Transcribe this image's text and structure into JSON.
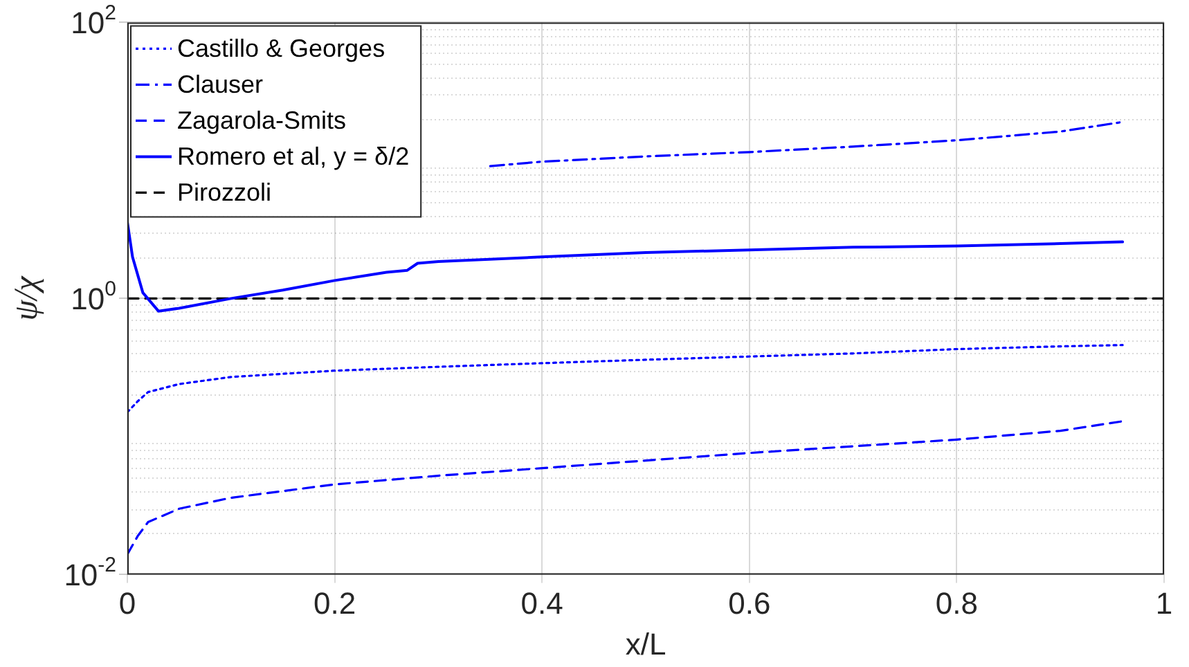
{
  "chart_data": {
    "type": "line",
    "xlabel": "x/L",
    "ylabel": "ψ/χ",
    "log": "y",
    "grid": true,
    "legend": "top left",
    "xlim": [
      0,
      1
    ],
    "xticks": [
      0,
      0.2,
      0.4,
      0.6,
      0.8,
      1
    ],
    "ylim": [
      0.01,
      100
    ],
    "yticks": [
      {
        "value": 0.01,
        "label": "10$^{-2}$"
      },
      {
        "value": 1,
        "label": "10$^{0}$"
      },
      {
        "value": 100,
        "label": "10$^{2}$"
      }
    ],
    "series": [
      {
        "name": "Castillo & Georges",
        "color": "#0000ff",
        "line_style": "dotted",
        "x": [
          0,
          0.01,
          0.02,
          0.05,
          0.1,
          0.2,
          0.3,
          0.4,
          0.5,
          0.6,
          0.7,
          0.8,
          0.9,
          0.96
        ],
        "values": [
          0.15,
          0.18,
          0.21,
          0.24,
          0.27,
          0.3,
          0.32,
          0.34,
          0.36,
          0.38,
          0.4,
          0.43,
          0.45,
          0.46
        ]
      },
      {
        "name": "Clauser",
        "color": "#0000ff",
        "line_style": "dashdot",
        "x": [
          0.35,
          0.4,
          0.5,
          0.6,
          0.7,
          0.8,
          0.9,
          0.96
        ],
        "values": [
          9.1,
          9.8,
          10.7,
          11.5,
          12.6,
          14,
          16.2,
          19
        ]
      },
      {
        "name": "Zagarola-Smits",
        "color": "#0000ff",
        "line_style": "dashed",
        "x": [
          0,
          0.01,
          0.02,
          0.05,
          0.1,
          0.2,
          0.3,
          0.4,
          0.5,
          0.6,
          0.7,
          0.8,
          0.9,
          0.96
        ],
        "values": [
          0.014,
          0.019,
          0.024,
          0.03,
          0.036,
          0.045,
          0.052,
          0.059,
          0.067,
          0.076,
          0.085,
          0.095,
          0.11,
          0.129
        ]
      },
      {
        "name": "Romero et al, y = δ/2",
        "color": "#0000ff",
        "line_style": "solid",
        "x": [
          0,
          0.005,
          0.015,
          0.03,
          0.05,
          0.1,
          0.15,
          0.2,
          0.25,
          0.27,
          0.28,
          0.3,
          0.4,
          0.5,
          0.6,
          0.7,
          0.8,
          0.9,
          0.96
        ],
        "values": [
          3.6,
          2,
          1.1,
          0.81,
          0.85,
          1,
          1.15,
          1.35,
          1.55,
          1.6,
          1.8,
          1.85,
          2,
          2.15,
          2.25,
          2.35,
          2.4,
          2.5,
          2.57
        ]
      },
      {
        "name": "Pirozzoli",
        "color": "#000000",
        "line_style": "dashed",
        "x": [
          0,
          1
        ],
        "values": [
          1,
          1
        ]
      }
    ]
  }
}
